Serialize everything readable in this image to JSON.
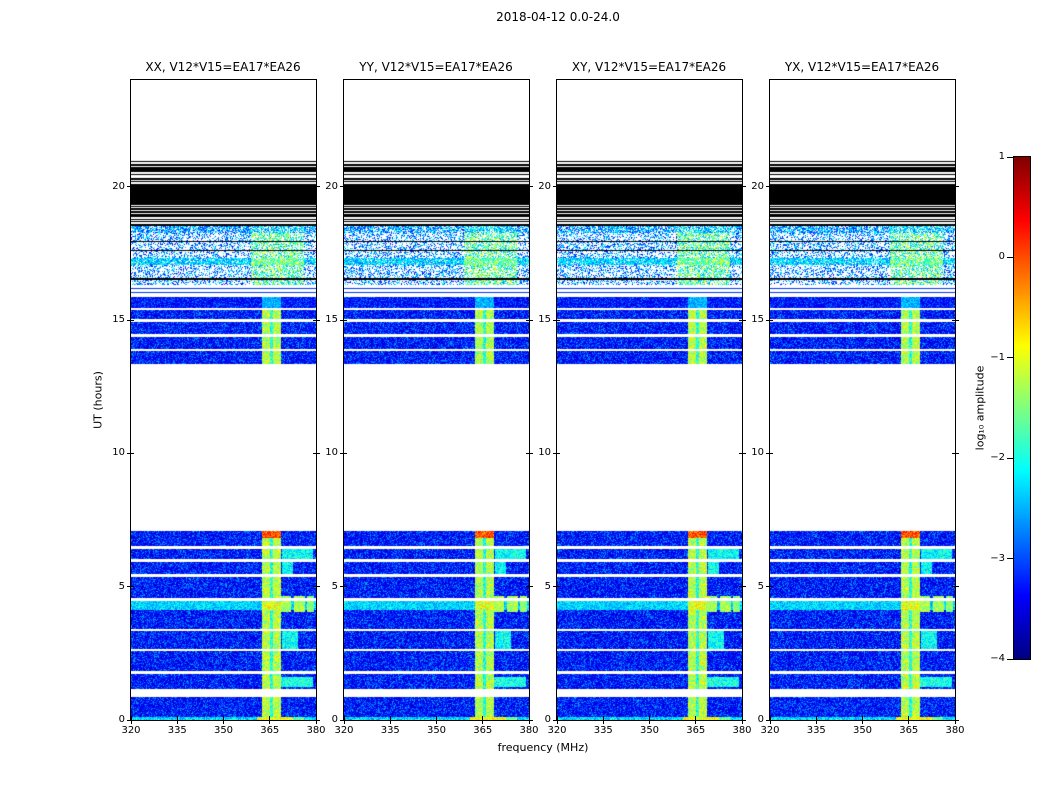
{
  "title": "2018-04-12 0.0-24.0",
  "chart_data": {
    "type": "heatmap",
    "title": "2018-04-12 0.0-24.0",
    "baseline": "V12*V15=EA17*EA26",
    "panels": [
      {
        "pol": "XX",
        "label": "XX, V12*V15=EA17*EA26"
      },
      {
        "pol": "YY",
        "label": "YY, V12*V15=EA17*EA26"
      },
      {
        "pol": "XY",
        "label": "XY, V12*V15=EA17*EA26"
      },
      {
        "pol": "YX",
        "label": "YX, V12*V15=EA17*EA26"
      }
    ],
    "xlabel": "frequency (MHz)",
    "ylabel": "UT (hours)",
    "xlim": [
      320,
      380
    ],
    "ylim": [
      0,
      24
    ],
    "xticks": [
      320,
      335,
      350,
      365,
      380
    ],
    "yticks": [
      0,
      5,
      10,
      15,
      20
    ],
    "colorbar": {
      "label": "log₁₀ amplitude",
      "range": [
        -4,
        1
      ],
      "ticks": [
        1,
        0,
        -1,
        -2,
        -3,
        -4
      ],
      "tick_labels": [
        "1",
        "0",
        "−1",
        "−2",
        "−3",
        "−4"
      ],
      "colormap": "jet"
    },
    "features": {
      "noise_floor_log10": -3.5,
      "rfi_stripe_mhz": [
        362.5,
        368.5
      ],
      "stripe_gap_mhz": [
        365.1,
        365.9
      ],
      "rows": [
        {
          "h0": 0.0,
          "h1": 0.12,
          "type": "bright_row"
        },
        {
          "h0": 0.12,
          "h1": 0.85,
          "type": "data"
        },
        {
          "h0": 0.85,
          "h1": 1.15,
          "type": "white"
        },
        {
          "h0": 1.15,
          "h1": 1.72,
          "type": "data"
        },
        {
          "h0": 1.72,
          "h1": 1.82,
          "type": "white"
        },
        {
          "h0": 1.82,
          "h1": 2.58,
          "type": "data"
        },
        {
          "h0": 2.58,
          "h1": 2.68,
          "type": "white"
        },
        {
          "h0": 2.68,
          "h1": 3.32,
          "type": "data"
        },
        {
          "h0": 3.32,
          "h1": 3.42,
          "type": "white"
        },
        {
          "h0": 3.42,
          "h1": 4.12,
          "type": "data"
        },
        {
          "h0": 4.12,
          "h1": 4.48,
          "type": "data_cyan"
        },
        {
          "h0": 4.48,
          "h1": 4.58,
          "type": "white"
        },
        {
          "h0": 4.58,
          "h1": 5.38,
          "type": "data"
        },
        {
          "h0": 5.38,
          "h1": 5.48,
          "type": "white"
        },
        {
          "h0": 5.48,
          "h1": 5.93,
          "type": "data"
        },
        {
          "h0": 5.93,
          "h1": 6.03,
          "type": "white"
        },
        {
          "h0": 6.03,
          "h1": 6.43,
          "type": "data"
        },
        {
          "h0": 6.43,
          "h1": 6.53,
          "type": "white"
        },
        {
          "h0": 6.53,
          "h1": 6.82,
          "type": "data"
        },
        {
          "h0": 6.82,
          "h1": 7.08,
          "type": "data_hot"
        },
        {
          "h0": 7.08,
          "h1": 13.35,
          "type": "white"
        },
        {
          "h0": 13.35,
          "h1": 13.82,
          "type": "data"
        },
        {
          "h0": 13.82,
          "h1": 13.92,
          "type": "white"
        },
        {
          "h0": 13.92,
          "h1": 14.36,
          "type": "data"
        },
        {
          "h0": 14.36,
          "h1": 14.46,
          "type": "white"
        },
        {
          "h0": 14.46,
          "h1": 14.92,
          "type": "data"
        },
        {
          "h0": 14.92,
          "h1": 15.02,
          "type": "white"
        },
        {
          "h0": 15.02,
          "h1": 15.38,
          "type": "data"
        },
        {
          "h0": 15.38,
          "h1": 15.46,
          "type": "white"
        },
        {
          "h0": 15.46,
          "h1": 15.86,
          "type": "data_plain"
        },
        {
          "h0": 15.86,
          "h1": 16.32,
          "type": "white_lines"
        },
        {
          "h0": 16.32,
          "h1": 17.08,
          "type": "speckle"
        },
        {
          "h0": 17.08,
          "h1": 17.32,
          "type": "speckle_cyan"
        },
        {
          "h0": 17.32,
          "h1": 18.28,
          "type": "speckle"
        },
        {
          "h0": 18.28,
          "h1": 18.52,
          "type": "speckle_blue"
        },
        {
          "h0": 18.52,
          "h1": 21.05,
          "type": "black_lines"
        },
        {
          "h0": 21.05,
          "h1": 24.0,
          "type": "white"
        }
      ],
      "extras": [
        {
          "h0": 4.05,
          "h1": 4.65,
          "f0": 368.5,
          "f1": 372.0,
          "v0": -1.7,
          "dv": 0.8
        },
        {
          "h0": 4.05,
          "h1": 4.65,
          "f0": 373.0,
          "f1": 376.5,
          "v0": -1.7,
          "dv": 0.8
        },
        {
          "h0": 4.05,
          "h1": 4.65,
          "f0": 377.0,
          "f1": 379.5,
          "v0": -1.85,
          "dv": 0.8
        },
        {
          "h0": 1.25,
          "h1": 1.62,
          "f0": 368.5,
          "f1": 379.0,
          "v0": -2.45,
          "dv": 0.9
        },
        {
          "h0": 2.68,
          "h1": 3.32,
          "f0": 369.0,
          "f1": 374.0,
          "v0": -2.55,
          "dv": 0.9
        },
        {
          "h0": 6.03,
          "h1": 6.43,
          "f0": 369.0,
          "f1": 379.0,
          "v0": -2.55,
          "dv": 0.9
        },
        {
          "h0": 5.48,
          "h1": 5.93,
          "f0": 369.0,
          "f1": 372.5,
          "v0": -2.55,
          "dv": 0.9
        }
      ],
      "dark_lines_hours": [
        [
          16.5,
          16.56
        ],
        [
          17.58,
          17.64
        ],
        [
          17.92,
          17.97
        ]
      ],
      "blue_lines_hours": [
        [
          16.0,
          16.04
        ],
        [
          16.16,
          16.2
        ]
      ],
      "black_line_density": [
        [
          18.52,
          18.72,
          0.45
        ],
        [
          18.72,
          19.1,
          0.55
        ],
        [
          19.1,
          19.55,
          0.8
        ],
        [
          19.55,
          19.72,
          0.62
        ],
        [
          19.72,
          20.05,
          0.85
        ],
        [
          20.05,
          20.4,
          0.55
        ],
        [
          20.4,
          20.7,
          0.4
        ],
        [
          20.7,
          21.05,
          0.3
        ]
      ]
    }
  }
}
